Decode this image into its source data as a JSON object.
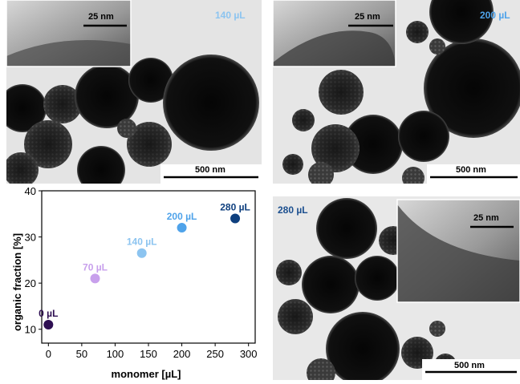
{
  "panels": {
    "top_left": {
      "volume_label": "140 µL",
      "inset_scale": "25 nm",
      "main_scale": "500 nm",
      "label_color": "#8cc4f0"
    },
    "top_right": {
      "volume_label": "200 µL",
      "inset_scale": "25 nm",
      "main_scale": "500 nm",
      "label_color": "#4fa3ea"
    },
    "bottom_right": {
      "volume_label": "280 µL",
      "inset_scale": "25 nm",
      "main_scale": "500 nm",
      "label_color": "#1b4f8f"
    }
  },
  "chart_data": {
    "type": "scatter",
    "xlabel": "monomer [µL]",
    "ylabel": "organic fraction [%]",
    "xlim": [
      -10,
      310
    ],
    "ylim": [
      7,
      40
    ],
    "xticks": [
      "0",
      "50",
      "100",
      "150",
      "200",
      "250",
      "300"
    ],
    "yticks": [
      "10",
      "20",
      "30",
      "40"
    ],
    "points": [
      {
        "x": 0,
        "y": 11,
        "label": "0 µL",
        "color": "#2e0f52"
      },
      {
        "x": 70,
        "y": 21,
        "label": "70 µL",
        "color": "#c8a0ec"
      },
      {
        "x": 140,
        "y": 26.5,
        "label": "140 µL",
        "color": "#8cc4f0"
      },
      {
        "x": 200,
        "y": 32,
        "label": "200 µL",
        "color": "#4fa3ea"
      },
      {
        "x": 280,
        "y": 34,
        "label": "280 µL",
        "color": "#0e3f7e"
      }
    ],
    "grid": false
  }
}
